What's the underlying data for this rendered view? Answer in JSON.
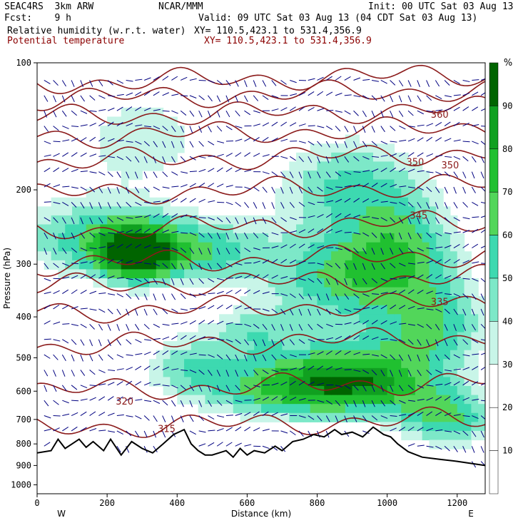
{
  "header": {
    "model": "SEAC4RS  3km ARW",
    "org": "NCAR/MMM",
    "init": "Init: 00 UTC Sat 03 Aug 13",
    "fcst": "Fcst:    9 h",
    "valid": "Valid: 09 UTC Sat 03 Aug 13 (04 CDT Sat 03 Aug 13)",
    "field1": "Relative humidity (w.r.t. water)",
    "xy1": "XY= 110.5,423.1 to 531.4,356.9",
    "field2": "Potential temperature",
    "xy2": "XY= 110.5,423.1 to 531.4,356.9"
  },
  "colors": {
    "rh_10": "#ffffff",
    "rh_30": "#c8f5e8",
    "rh_40": "#7de8c8",
    "rh_50": "#3dd9b0",
    "rh_60": "#52d65a",
    "rh_70": "#20c030",
    "rh_80": "#10a020",
    "rh_90": "#006400",
    "theta": "#8b1a1a",
    "wind": "#000080",
    "terrain": "#000000"
  },
  "chart_data": {
    "type": "heatmap",
    "title": "Relative humidity (w.r.t. water)",
    "xlabel": "Distance (km)",
    "ylabel": "Pressure (hPa)",
    "xlim": [
      0,
      1280
    ],
    "ylim": [
      1050,
      100
    ],
    "y_scale": "log",
    "x_ticks": [
      0,
      200,
      400,
      600,
      800,
      1000,
      1200
    ],
    "y_ticks": [
      100,
      200,
      300,
      400,
      500,
      600,
      700,
      800,
      900,
      1000
    ],
    "x_end_labels": {
      "left": "W",
      "right": "E"
    },
    "colorbar": {
      "unit": "%",
      "ticks": [
        10,
        20,
        30,
        40,
        50,
        60,
        70,
        80,
        90
      ],
      "shaded_levels": [
        30,
        40,
        50,
        60,
        70,
        80,
        90
      ]
    },
    "theta_labels": [
      {
        "text": "360",
        "x": 1150,
        "p": 135
      },
      {
        "text": "350",
        "x": 1080,
        "p": 175
      },
      {
        "text": "350",
        "x": 1180,
        "p": 178
      },
      {
        "text": "345",
        "x": 1090,
        "p": 234
      },
      {
        "text": "335",
        "x": 1150,
        "p": 375
      },
      {
        "text": "320",
        "x": 250,
        "p": 645
      },
      {
        "text": "315",
        "x": 370,
        "p": 750
      }
    ],
    "theta_contours_p_at_0km": [
      112,
      122,
      135,
      150,
      172,
      205,
      250,
      300,
      340,
      390,
      470,
      600,
      735
    ],
    "terrain": {
      "x": [
        0,
        40,
        60,
        80,
        100,
        120,
        140,
        160,
        190,
        210,
        240,
        270,
        300,
        330,
        360,
        390,
        420,
        440,
        460,
        480,
        500,
        520,
        540,
        560,
        580,
        600,
        620,
        650,
        680,
        700,
        730,
        760,
        790,
        820,
        850,
        870,
        900,
        930,
        960,
        990,
        1010,
        1030,
        1060,
        1100,
        1150,
        1200,
        1240,
        1280
      ],
      "p": [
        840,
        830,
        780,
        820,
        800,
        780,
        815,
        790,
        830,
        780,
        850,
        790,
        820,
        840,
        800,
        760,
        740,
        800,
        830,
        850,
        850,
        840,
        830,
        860,
        820,
        850,
        830,
        840,
        810,
        830,
        790,
        780,
        760,
        770,
        740,
        760,
        750,
        770,
        730,
        760,
        770,
        800,
        835,
        860,
        870,
        880,
        890,
        900
      ]
    }
  }
}
